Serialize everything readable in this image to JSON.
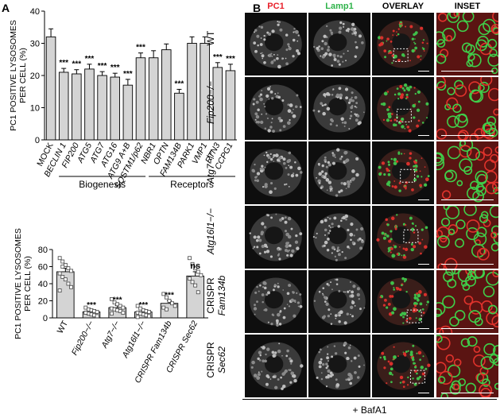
{
  "panel_a_label": "A",
  "panel_b_label": "B",
  "chart_data": [
    {
      "type": "bar",
      "ylabel_line1": "PC1 POSITIVE LYSOSOMES",
      "ylabel_line2": "PER CELL (%)",
      "ylim": [
        0,
        40
      ],
      "yticks": [
        "0",
        "10",
        "20",
        "30",
        "40"
      ],
      "categories": [
        "MOCK",
        "BECLIN 1",
        "FIP200",
        "ATG5",
        "ATG7",
        "ATG16",
        "ATG9 A+B",
        "SQSTM1/p62",
        "NBR1",
        "OPTN",
        "FAM134B",
        "PARK1",
        "VMP1",
        "RTN3",
        "CCPG1"
      ],
      "values": [
        32,
        21,
        20.5,
        22,
        20,
        19.5,
        17,
        25.5,
        25.5,
        28,
        14.5,
        30,
        30,
        22.5,
        21.5
      ],
      "errors": [
        2.5,
        1.2,
        1.3,
        1.5,
        1.2,
        1.2,
        1.8,
        1.5,
        2.2,
        1.8,
        1.2,
        2.0,
        2.0,
        1.5,
        2.0
      ],
      "significance": [
        "",
        "***",
        "***",
        "***",
        "***",
        "***",
        "***",
        "***",
        "",
        "",
        "***",
        "",
        "",
        "***",
        "***"
      ],
      "groups": [
        {
          "label": "Biogenesis",
          "from": 1,
          "to": 7
        },
        {
          "label": "Receptors",
          "from": 8,
          "to": 14
        }
      ]
    },
    {
      "type": "bar",
      "ylabel_line1": "PC1 POSITIVE LYSOSOMES",
      "ylabel_line2": "PER CELL (%)",
      "ylim": [
        0,
        80
      ],
      "yticks": [
        "0",
        "20",
        "40",
        "60",
        "80"
      ],
      "categories": [
        "WT",
        "Fip200−/−",
        "Atg7−/−",
        "Atg16l1−/−",
        "CRISPR Fam134b",
        "CRISPR Sec62"
      ],
      "values": [
        54,
        7,
        12,
        7,
        17,
        49
      ],
      "errors": [
        4,
        1.5,
        2.5,
        1.5,
        3,
        5
      ],
      "significance": [
        "",
        "***",
        "***",
        "***",
        "***",
        "ns"
      ],
      "points": [
        [
          70,
          66,
          62,
          58,
          55,
          52,
          48,
          45,
          40,
          36,
          32,
          60
        ],
        [
          12,
          10,
          9,
          8,
          7,
          6,
          5,
          4,
          3,
          2,
          6
        ],
        [
          22,
          18,
          16,
          14,
          12,
          11,
          10,
          9,
          8,
          6,
          5
        ],
        [
          14,
          11,
          9,
          8,
          7,
          6,
          5,
          4,
          3,
          2,
          1
        ],
        [
          28,
          24,
          20,
          17,
          14,
          12,
          10
        ],
        [
          70,
          63,
          58,
          54,
          50,
          46,
          42,
          38,
          30
        ]
      ]
    }
  ],
  "micrograph": {
    "columns": [
      "PC1",
      "Lamp1",
      "OVERLAY",
      "INSET"
    ],
    "column_colors": [
      "#e8202a",
      "#2fb34a",
      "#000000",
      "#000000"
    ],
    "rows": [
      {
        "line1": "WT",
        "line2": ""
      },
      {
        "line1": "Fip200−/−",
        "line2": ""
      },
      {
        "line1": "Atg7−/−",
        "line2": ""
      },
      {
        "line1": "Atg16l1−/−",
        "line2": ""
      },
      {
        "line1": "CRISPR",
        "line2": "Fam134b"
      },
      {
        "line1": "CRISPR",
        "line2": "Sec62"
      }
    ],
    "treatment": "+ BafA1"
  }
}
